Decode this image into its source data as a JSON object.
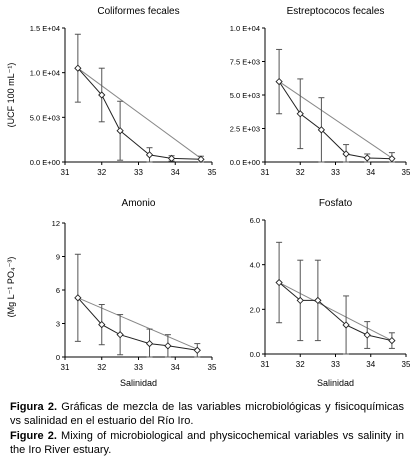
{
  "chart_data": [
    {
      "type": "line",
      "title": "Coliformes fecales",
      "ylabel": "(UCF 100 mL⁻¹)",
      "xlabel": "",
      "xlim": [
        31,
        35
      ],
      "ylim": [
        0,
        15000
      ],
      "xticks": [
        "31",
        "32",
        "33",
        "34",
        "35"
      ],
      "yticks": [
        "0.0 E+00",
        "5.0 E+03",
        "1.0 E+04",
        "1.5 E+04"
      ],
      "ytick_values": [
        0,
        5000,
        10000,
        15000
      ],
      "series": [
        {
          "style": "observed",
          "x": [
            31.35,
            32.0,
            32.5,
            33.3,
            33.9,
            34.7
          ],
          "y": [
            10500,
            7500,
            3500,
            800,
            400,
            300
          ],
          "err": [
            3800,
            3000,
            3300,
            800,
            300,
            350
          ]
        },
        {
          "style": "mixing",
          "x": [
            31.35,
            34.7
          ],
          "y": [
            10500,
            400
          ]
        }
      ]
    },
    {
      "type": "line",
      "title": "Estreptococos fecales",
      "ylabel": "",
      "xlabel": "",
      "xlim": [
        31,
        35
      ],
      "ylim": [
        0,
        10000
      ],
      "xticks": [
        "31",
        "32",
        "33",
        "34",
        "35"
      ],
      "yticks": [
        "0.0 E+00",
        "2.5 E+03",
        "5.0 E+03",
        "7.5 E+03",
        "1.0 E+04"
      ],
      "ytick_values": [
        0,
        2500,
        5000,
        7500,
        10000
      ],
      "series": [
        {
          "style": "observed",
          "x": [
            31.4,
            32.0,
            32.6,
            33.3,
            33.9,
            34.6
          ],
          "y": [
            6000,
            3600,
            2400,
            600,
            300,
            250
          ],
          "err": [
            2400,
            2600,
            2400,
            700,
            300,
            450
          ]
        },
        {
          "style": "mixing",
          "x": [
            31.4,
            34.6
          ],
          "y": [
            6000,
            300
          ]
        }
      ]
    },
    {
      "type": "line",
      "title": "Amonio",
      "ylabel": "",
      "xlabel": "Salinidad",
      "xlim": [
        31,
        35
      ],
      "ylim": [
        0,
        12
      ],
      "xticks": [
        "31",
        "32",
        "33",
        "34",
        "35"
      ],
      "yticks": [
        "0",
        "3",
        "6",
        "9",
        "12"
      ],
      "ytick_values": [
        0,
        3,
        6,
        9,
        12
      ],
      "series": [
        {
          "style": "observed",
          "x": [
            31.35,
            32.0,
            32.5,
            33.3,
            33.8,
            34.6
          ],
          "y": [
            5.3,
            2.9,
            2.0,
            1.2,
            1.0,
            0.6
          ],
          "err": [
            3.9,
            1.8,
            1.8,
            1.3,
            1.0,
            0.6
          ]
        },
        {
          "style": "mixing",
          "x": [
            31.35,
            34.6
          ],
          "y": [
            5.3,
            0.7
          ]
        }
      ]
    },
    {
      "type": "line",
      "title": "Fosfato",
      "ylabel": "(Mg L⁻¹ PO₄⁻³)",
      "xlabel": "Salinidad",
      "xlim": [
        31,
        35
      ],
      "ylim": [
        0,
        6
      ],
      "xticks": [
        "31",
        "32",
        "33",
        "34",
        "35"
      ],
      "yticks": [
        "0.0",
        "2.0",
        "4.0",
        "6.0"
      ],
      "ytick_values": [
        0,
        2,
        4,
        6
      ],
      "series": [
        {
          "style": "observed",
          "x": [
            31.4,
            32.0,
            32.5,
            33.3,
            33.9,
            34.6
          ],
          "y": [
            3.2,
            2.4,
            2.4,
            1.3,
            0.85,
            0.6
          ],
          "err": [
            1.8,
            1.8,
            1.8,
            1.3,
            0.6,
            0.35
          ]
        },
        {
          "style": "mixing",
          "x": [
            31.4,
            34.6
          ],
          "y": [
            3.2,
            0.6
          ]
        }
      ]
    }
  ],
  "caption": {
    "es_label": "Figura 2.",
    "es_text": " Gráficas de mezcla de las variables microbiológicas y fisicoquímicas vs salinidad en el estuario del Río Iro.",
    "en_label": "Figure 2.",
    "en_text": " Mixing of microbiological and physicochemical variables vs salinity in the Iro River estuary."
  }
}
